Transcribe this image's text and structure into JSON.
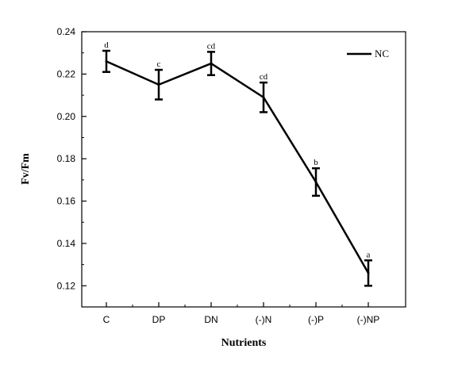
{
  "chart_data": {
    "type": "line",
    "xlabel": "Nutrients",
    "ylabel": "Fv/Fm",
    "ylim": [
      0.11,
      0.24
    ],
    "yticks": [
      "0.12",
      "0.14",
      "0.16",
      "0.18",
      "0.20",
      "0.22",
      "0.24"
    ],
    "ytick_values": [
      0.12,
      0.14,
      0.16,
      0.18,
      0.2,
      0.22,
      0.24
    ],
    "categories": [
      "C",
      "DP",
      "DN",
      "(-)N",
      "(-)P",
      "(-)NP"
    ],
    "series": [
      {
        "name": "NC",
        "values": [
          0.226,
          0.215,
          0.225,
          0.209,
          0.169,
          0.126
        ],
        "errors": [
          0.005,
          0.007,
          0.0055,
          0.007,
          0.0065,
          0.006
        ],
        "labels": [
          "d",
          "c",
          "cd",
          "cd",
          "b",
          "a"
        ]
      }
    ],
    "legend_position": "top-right",
    "grid": false,
    "line_color": "#000000"
  }
}
